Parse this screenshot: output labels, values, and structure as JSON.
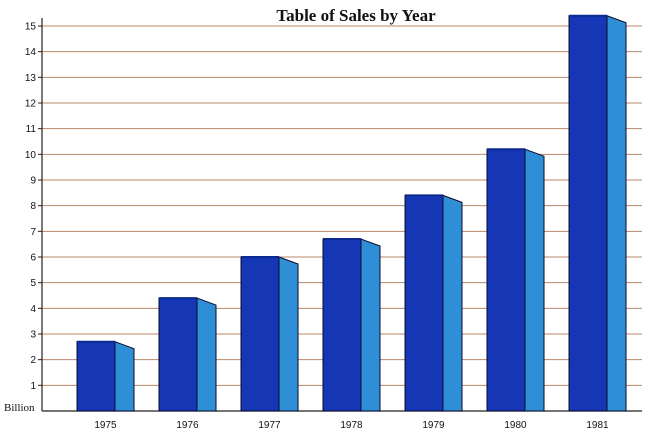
{
  "chart_data": {
    "type": "bar",
    "title": "Table of Sales by Year",
    "categories": [
      "1975",
      "1976",
      "1977",
      "1978",
      "1979",
      "1980",
      "1981"
    ],
    "values": [
      2.7,
      4.4,
      6.0,
      6.7,
      8.4,
      10.2,
      15.4
    ],
    "y_unit_label": "Billion",
    "ylim": [
      0,
      15
    ],
    "yticks": [
      1,
      2,
      3,
      4,
      5,
      6,
      7,
      8,
      9,
      10,
      11,
      12,
      13,
      14,
      15
    ],
    "grid": true,
    "colors": {
      "bar_front": "#1537b5",
      "bar_side": "#2f8fd6",
      "bar_top": "#0d2a8f",
      "outline": "#0a0a2a",
      "grid": "#b9876a",
      "axis": "#222222"
    }
  }
}
